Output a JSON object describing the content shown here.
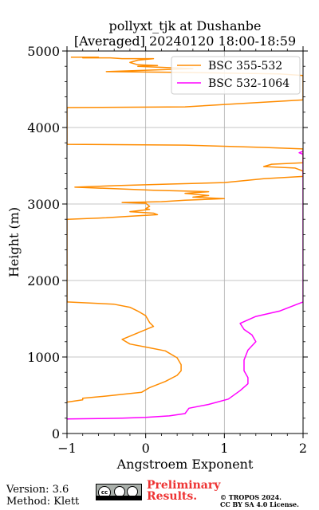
{
  "chart_data": {
    "type": "line",
    "title": [
      "pollyxt_tjk at Dushanbe",
      "[Averaged] 20240120 18:00-18:59"
    ],
    "xlabel": "Angstroem Exponent",
    "ylabel": "Height (m)",
    "xlim": [
      -1,
      2
    ],
    "ylim": [
      0,
      5000
    ],
    "xticks": [
      -1,
      0,
      1,
      2
    ],
    "xticklabels": [
      "−1",
      "0",
      "1",
      "2"
    ],
    "yticks": [
      0,
      1000,
      2000,
      3000,
      4000,
      5000
    ],
    "yticklabels": [
      "0",
      "1000",
      "2000",
      "3000",
      "4000",
      "5000"
    ],
    "grid": true,
    "legend_position": "top-right",
    "series": [
      {
        "name": "BSC 355-532",
        "color": "#ff8c00",
        "points": [
          [
            -0.95,
            4920
          ],
          [
            -0.6,
            4920
          ],
          [
            -0.8,
            4910
          ],
          [
            -0.45,
            4910
          ],
          [
            -0.3,
            4900
          ],
          [
            0.1,
            4900
          ],
          [
            -0.1,
            4880
          ],
          [
            -0.2,
            4850
          ],
          [
            -0.1,
            4820
          ],
          [
            0.15,
            4810
          ],
          [
            -0.1,
            4800
          ],
          [
            0.6,
            4770
          ],
          [
            -0.5,
            4730
          ],
          [
            0.5,
            4720
          ],
          [
            1.7,
            4700
          ],
          [
            2.0,
            4680
          ],
          [
            2.0,
            4360
          ],
          [
            1.5,
            4330
          ],
          [
            0.5,
            4270
          ],
          [
            -1.0,
            4260
          ],
          [
            -1.0,
            3780
          ],
          [
            0.5,
            3770
          ],
          [
            1.5,
            3740
          ],
          [
            2.0,
            3720
          ],
          [
            2.0,
            3540
          ],
          [
            1.6,
            3520
          ],
          [
            1.5,
            3490
          ],
          [
            1.9,
            3470
          ],
          [
            2.0,
            3430
          ],
          [
            2.0,
            3360
          ],
          [
            1.5,
            3330
          ],
          [
            1.0,
            3280
          ],
          [
            0.3,
            3260
          ],
          [
            -0.4,
            3240
          ],
          [
            -0.9,
            3220
          ],
          [
            -0.4,
            3200
          ],
          [
            0.1,
            3180
          ],
          [
            0.5,
            3170
          ],
          [
            0.8,
            3160
          ],
          [
            0.5,
            3140
          ],
          [
            0.8,
            3110
          ],
          [
            0.6,
            3090
          ],
          [
            1.0,
            3070
          ],
          [
            0.5,
            3050
          ],
          [
            0.2,
            3030
          ],
          [
            -0.3,
            3020
          ],
          [
            0.0,
            3010
          ],
          [
            0.05,
            2970
          ],
          [
            0.0,
            2940
          ],
          [
            0.05,
            2930
          ],
          [
            -0.2,
            2900
          ],
          [
            0.1,
            2880
          ],
          [
            0.15,
            2860
          ],
          [
            -0.2,
            2840
          ],
          [
            -0.5,
            2820
          ],
          [
            -1.0,
            2800
          ],
          [
            -1.0,
            1720
          ],
          [
            -0.4,
            1690
          ],
          [
            -0.2,
            1650
          ],
          [
            -0.1,
            1600
          ],
          [
            0.0,
            1540
          ],
          [
            0.05,
            1450
          ],
          [
            0.1,
            1400
          ],
          [
            -0.3,
            1230
          ],
          [
            -0.2,
            1170
          ],
          [
            0.0,
            1130
          ],
          [
            0.25,
            1080
          ],
          [
            0.4,
            990
          ],
          [
            0.45,
            900
          ],
          [
            0.45,
            820
          ],
          [
            0.4,
            760
          ],
          [
            0.25,
            680
          ],
          [
            0.05,
            600
          ],
          [
            -0.05,
            540
          ],
          [
            -0.5,
            490
          ],
          [
            -0.8,
            460
          ],
          [
            -0.8,
            440
          ],
          [
            -1.0,
            410
          ]
        ]
      },
      {
        "name": "BSC 532-1064",
        "color": "#ff00ff",
        "points": [
          [
            2.0,
            3690
          ],
          [
            1.95,
            3670
          ],
          [
            2.0,
            3650
          ],
          [
            2.0,
            1720
          ],
          [
            1.7,
            1600
          ],
          [
            1.4,
            1530
          ],
          [
            1.2,
            1440
          ],
          [
            1.25,
            1360
          ],
          [
            1.35,
            1290
          ],
          [
            1.4,
            1200
          ],
          [
            1.3,
            1090
          ],
          [
            1.25,
            960
          ],
          [
            1.25,
            820
          ],
          [
            1.3,
            730
          ],
          [
            1.3,
            650
          ],
          [
            1.2,
            560
          ],
          [
            1.05,
            450
          ],
          [
            0.8,
            380
          ],
          [
            0.55,
            330
          ],
          [
            0.5,
            260
          ],
          [
            0.3,
            230
          ],
          [
            0.0,
            210
          ],
          [
            -0.3,
            200
          ],
          [
            -0.6,
            195
          ],
          [
            -1.0,
            190
          ]
        ]
      }
    ]
  },
  "footer": {
    "version": "Version: 3.6",
    "method": "Method: Klett",
    "preliminary_line1": "Preliminary",
    "preliminary_line2": "Results.",
    "copyright_line1": "© TROPOS 2024.",
    "copyright_line2": "CC BY SA 4.0 License.",
    "license_icon": "cc-by-sa-badge"
  }
}
